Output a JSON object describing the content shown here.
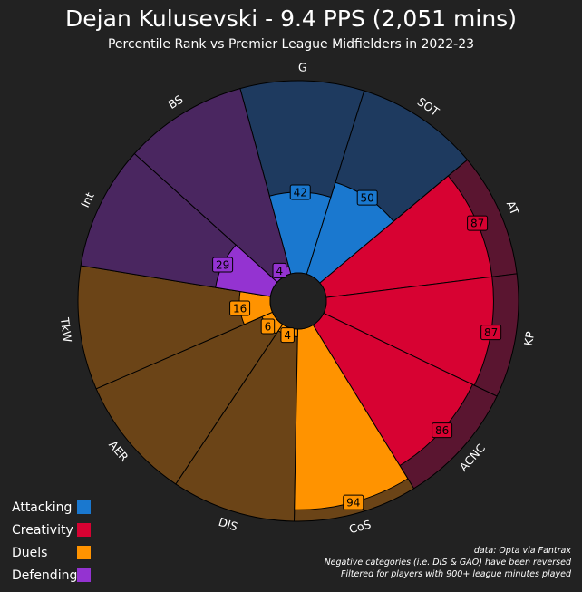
{
  "title": "Dejan Kulusevski - 9.4 PPS (2,051 mins)",
  "subtitle": "Percentile Rank vs Premier League Midfielders in 2022-23",
  "legend": [
    {
      "label": "Attacking",
      "color": "#1a78cf"
    },
    {
      "label": "Creativity",
      "color": "#d70232"
    },
    {
      "label": "Duels",
      "color": "#ff9300"
    },
    {
      "label": "Defending",
      "color": "#9433d1"
    }
  ],
  "notes": [
    "data: Opta via Fantrax",
    "Negative categories (i.e. DIS & GAO) have been reversed",
    "Filtered for players with 900+ league minutes played"
  ],
  "chart_data": {
    "type": "pie",
    "subtype": "polar-area (pizza)",
    "scale": [
      0,
      100
    ],
    "categories": [
      "G",
      "SOT",
      "AT",
      "KP",
      "ACNC",
      "CoS",
      "DIS",
      "AER",
      "TkW",
      "Int",
      "BS"
    ],
    "values": [
      42,
      50,
      87,
      87,
      86,
      94,
      4,
      6,
      16,
      29,
      4
    ],
    "groups": [
      "Attacking",
      "Attacking",
      "Creativity",
      "Creativity",
      "Creativity",
      "Duels",
      "Duels",
      "Duels",
      "Duels",
      "Defending",
      "Defending"
    ],
    "background_colors": {
      "Attacking": "#1e3a5f",
      "Creativity": "#5a1530",
      "Duels": "#6b4417",
      "Defending": "#4a2660"
    },
    "legend_position": "bottom-left"
  }
}
